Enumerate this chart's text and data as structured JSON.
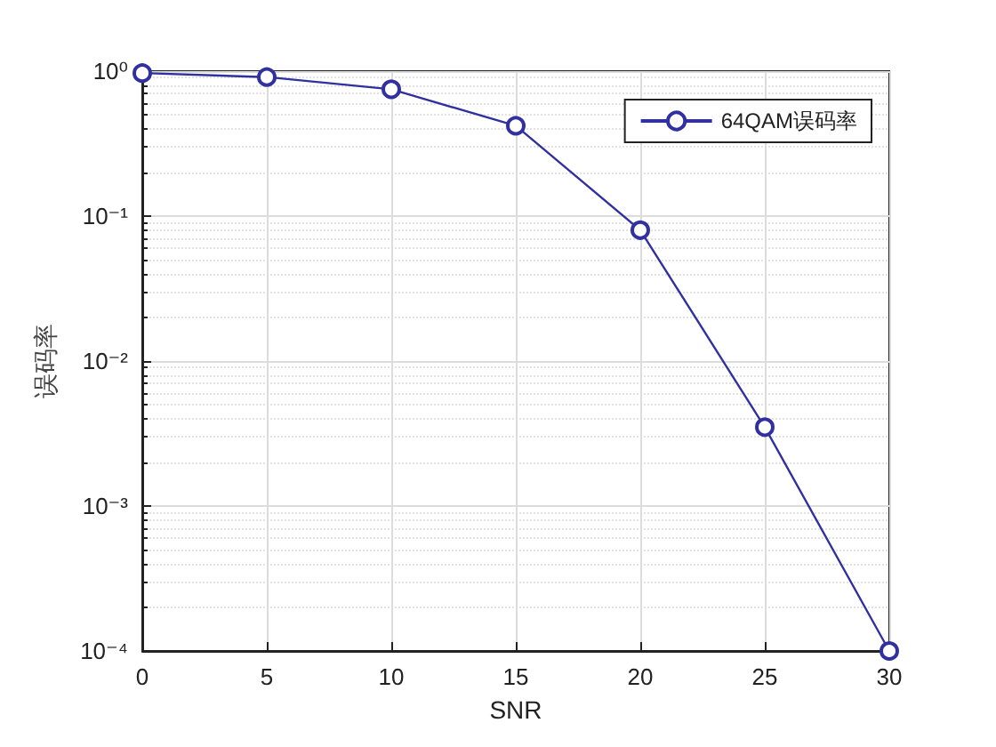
{
  "chart_data": {
    "type": "line",
    "xlabel": "SNR",
    "ylabel": "误码率",
    "x": [
      0,
      5,
      10,
      15,
      20,
      25,
      30
    ],
    "series": [
      {
        "name": "64QAM误码率",
        "color": "#3030a0",
        "values": [
          0.97,
          0.91,
          0.75,
          0.42,
          0.08,
          0.0035,
          0.0001
        ]
      }
    ],
    "xlim": [
      0,
      30
    ],
    "xticks": [
      0,
      5,
      10,
      15,
      20,
      25,
      30
    ],
    "ylim": [
      0.0001,
      1
    ],
    "yticks": [
      {
        "value": 0.0001,
        "label": "10⁻⁴"
      },
      {
        "value": 0.001,
        "label": "10⁻³"
      },
      {
        "value": 0.01,
        "label": "10⁻²"
      },
      {
        "value": 0.1,
        "label": "10⁻¹"
      },
      {
        "value": 1,
        "label": "10⁰"
      }
    ],
    "log": "y",
    "grid": true,
    "legend": "top right",
    "marker": "circle",
    "line_style": "solid"
  }
}
